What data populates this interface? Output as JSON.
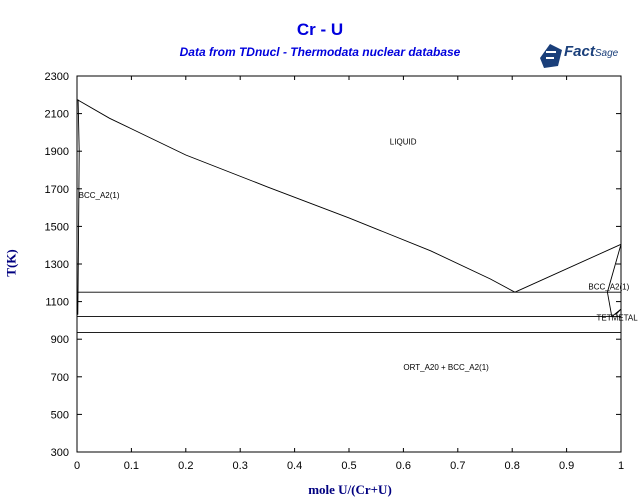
{
  "chart_data": {
    "type": "line",
    "title": "Cr - U",
    "subtitle": "Data from TDnucl - Thermodata nuclear database",
    "xlabel": "mole U/(Cr+U)",
    "ylabel": "T(K)",
    "xlim": [
      0,
      1
    ],
    "ylim": [
      300,
      2300
    ],
    "x_ticks": [
      0,
      0.1,
      0.2,
      0.3,
      0.4,
      0.5,
      0.6,
      0.7,
      0.8,
      0.9,
      1
    ],
    "x_tick_labels": [
      "0",
      "0.1",
      "0.2",
      "0.3",
      "0.4",
      "0.5",
      "0.6",
      "0.7",
      "0.8",
      "0.9",
      "1"
    ],
    "y_ticks": [
      300,
      500,
      700,
      900,
      1100,
      1300,
      1500,
      1700,
      1900,
      2100,
      2300
    ],
    "y_tick_labels": [
      "300",
      "500",
      "700",
      "900",
      "1100",
      "1300",
      "1500",
      "1700",
      "1900",
      "2100",
      "2300"
    ],
    "grid": false,
    "series": [
      {
        "values": [
          [
            0,
            2175
          ],
          [
            0.06,
            2075
          ],
          [
            0.2,
            1880
          ],
          [
            0.35,
            1710
          ],
          [
            0.5,
            1545
          ],
          [
            0.65,
            1370
          ],
          [
            0.76,
            1220
          ],
          [
            0.805,
            1150
          ]
        ]
      },
      {
        "values": [
          [
            0.805,
            1150
          ],
          [
            1,
            1405
          ]
        ]
      },
      {
        "values": [
          [
            0.002,
            2175
          ],
          [
            0.004,
            1900
          ],
          [
            0.003,
            1500
          ],
          [
            0.002,
            1200
          ],
          [
            0.0015,
            1030
          ]
        ]
      },
      {
        "values": [
          [
            0,
            1150
          ],
          [
            1,
            1150
          ]
        ]
      },
      {
        "values": [
          [
            0,
            1020
          ],
          [
            1,
            1020
          ]
        ]
      },
      {
        "values": [
          [
            0,
            935
          ],
          [
            1,
            935
          ]
        ]
      },
      {
        "values": [
          [
            1,
            1405
          ],
          [
            0.975,
            1150
          ],
          [
            0.983,
            1020
          ],
          [
            1,
            1060
          ]
        ]
      },
      {
        "values": [
          [
            1,
            1060
          ],
          [
            0.99,
            1030
          ]
        ]
      }
    ],
    "annotations": [
      {
        "text": "LIQUID",
        "x": 0.575,
        "y": 1935
      },
      {
        "text": "BCC_A2(1)",
        "x": 0.003,
        "y": 1650
      },
      {
        "text": "BCC_A2(1)",
        "x": 0.94,
        "y": 1165
      },
      {
        "text": "TETMETAL",
        "x": 0.955,
        "y": 1000
      },
      {
        "text": "ORT_A20 + BCC_A2(1)",
        "x": 0.6,
        "y": 735
      }
    ]
  },
  "logo": {
    "brand": "Fact",
    "sub": "Sage"
  }
}
